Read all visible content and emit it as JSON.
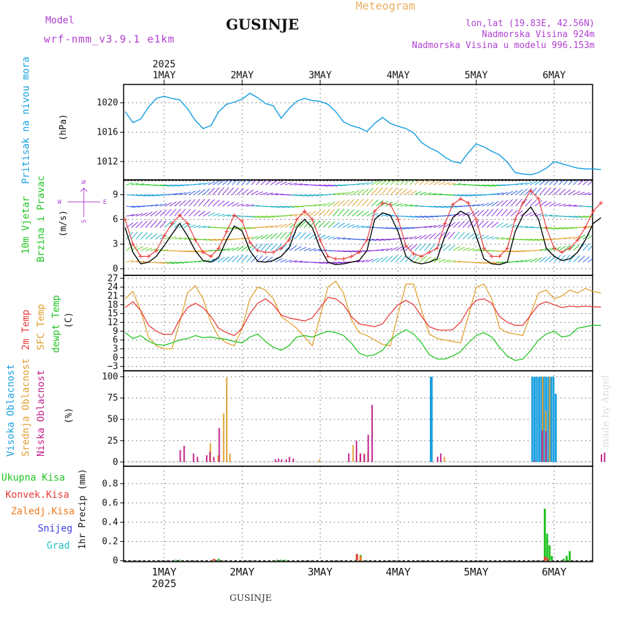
{
  "header": {
    "title": "Meteogram",
    "station": "GUSINJE",
    "model_label": "Model",
    "model_name": "wrf-nmm_v3.9.1 e1km",
    "coords": "lon,lat (19.83E, 42.56N)",
    "elevation": "Nadmorska Visina 924m",
    "model_elevation": "Nadmorska Visina u modelu 996.153m",
    "bottom_station": "GUSINJE",
    "watermark": "made by Angel"
  },
  "time_axis": {
    "year": "2025",
    "days": [
      "1MAY",
      "2MAY",
      "3MAY",
      "4MAY",
      "5MAY",
      "6MAY"
    ]
  },
  "colors": {
    "pressure": "#1aa0e0",
    "temp2m": "#e83a3a",
    "sfc": "#e0a030",
    "dewpt": "#22c422",
    "high_cloud": "#1aa0e0",
    "mid_cloud": "#e0a030",
    "low_cloud": "#c0208a",
    "total_rain": "#22c422",
    "convective": "#e83a3a",
    "freezing": "#f07a20",
    "snow": "#4040e0",
    "hail": "#20c0c0",
    "wind_label": "#22c422",
    "legend_purple": "#b040d0"
  },
  "chart_data": [
    {
      "type": "line",
      "id": "pressure",
      "ylabel": "(hPa)",
      "side_label": "Pritisak na nivou mora",
      "yticks": [
        1012,
        1016,
        1020
      ],
      "ylim": [
        1009.5,
        1022.5
      ],
      "x_unit": "days since 1MAY 00",
      "series": [
        {
          "name": "pressure",
          "x": [
            -0.5,
            -0.4,
            -0.3,
            -0.2,
            -0.1,
            0,
            0.1,
            0.2,
            0.3,
            0.4,
            0.5,
            0.6,
            0.7,
            0.8,
            0.9,
            1,
            1.1,
            1.2,
            1.3,
            1.4,
            1.5,
            1.6,
            1.7,
            1.8,
            1.9,
            2,
            2.1,
            2.2,
            2.3,
            2.4,
            2.5,
            2.6,
            2.7,
            2.8,
            2.9,
            3,
            3.1,
            3.2,
            3.3,
            3.4,
            3.5,
            3.6,
            3.7,
            3.8,
            3.9,
            4,
            4.1,
            4.2,
            4.3,
            4.4,
            4.5,
            4.6,
            4.7,
            4.8,
            4.9,
            5,
            5.1,
            5.2,
            5.3,
            5.4,
            5.5,
            5.6
          ],
          "values": [
            1018.8,
            1017.3,
            1017.8,
            1019.4,
            1020.6,
            1020.9,
            1020.6,
            1020.4,
            1019.2,
            1017.6,
            1016.5,
            1016.9,
            1018.8,
            1019.8,
            1020.1,
            1020.5,
            1021.3,
            1020.7,
            1019.9,
            1019.6,
            1017.9,
            1019.2,
            1020.2,
            1020.6,
            1020.3,
            1020.2,
            1019.8,
            1018.8,
            1017.4,
            1016.9,
            1016.6,
            1016.1,
            1017.2,
            1018.0,
            1017.2,
            1016.8,
            1016.5,
            1015.9,
            1014.6,
            1013.9,
            1013.4,
            1012.6,
            1012.0,
            1011.8,
            1013.2,
            1014.4,
            1014.0,
            1013.4,
            1012.9,
            1011.9,
            1010.5,
            1010.3,
            1010.2,
            1010.5,
            1011.1,
            1012.0,
            1011.7,
            1011.4,
            1011.1,
            1011.0,
            1011.0,
            1010.9
          ]
        }
      ]
    },
    {
      "type": "line",
      "id": "wind",
      "ylabel": "(m/s)",
      "side_label_1": "10m Vjetar",
      "side_label_2": "Brzina i Pravac",
      "compass_n": "N",
      "compass_w": "W",
      "compass_e": "E",
      "compass_s": "S",
      "yticks": [
        0,
        3,
        6,
        9
      ],
      "ylim": [
        -0.8,
        10.8
      ],
      "x_unit": "days since 1MAY 00",
      "series": [
        {
          "name": "speed",
          "x": [
            -0.5,
            -0.4,
            -0.3,
            -0.2,
            -0.1,
            0,
            0.1,
            0.2,
            0.3,
            0.4,
            0.5,
            0.6,
            0.7,
            0.8,
            0.9,
            1,
            1.1,
            1.2,
            1.3,
            1.4,
            1.5,
            1.6,
            1.7,
            1.8,
            1.9,
            2,
            2.1,
            2.2,
            2.3,
            2.4,
            2.5,
            2.6,
            2.7,
            2.8,
            2.9,
            3,
            3.1,
            3.2,
            3.3,
            3.4,
            3.5,
            3.6,
            3.7,
            3.8,
            3.9,
            4,
            4.1,
            4.2,
            4.3,
            4.4,
            4.5,
            4.6,
            4.7,
            4.8,
            4.9,
            5,
            5.1,
            5.2,
            5.3,
            5.4,
            5.5,
            5.6
          ],
          "values": [
            5.0,
            2.0,
            0.6,
            0.8,
            1.5,
            2.8,
            4.2,
            5.5,
            4.0,
            2.2,
            1.0,
            0.8,
            1.4,
            3.5,
            5.2,
            4.6,
            2.2,
            0.9,
            0.8,
            1.0,
            1.5,
            2.5,
            5.0,
            6.0,
            5.0,
            2.5,
            0.8,
            0.5,
            0.6,
            0.8,
            1.0,
            2.2,
            6.0,
            6.8,
            6.5,
            4.5,
            1.5,
            0.8,
            0.6,
            0.8,
            1.2,
            4.0,
            6.2,
            7.0,
            6.5,
            4.0,
            1.2,
            0.6,
            0.5,
            0.8,
            4.5,
            6.5,
            7.5,
            6.0,
            2.5,
            1.5,
            1.0,
            1.2,
            2.0,
            3.5,
            5.5,
            6.2
          ]
        },
        {
          "name": "gust",
          "x": [
            -0.5,
            -0.4,
            -0.3,
            -0.2,
            -0.1,
            0,
            0.1,
            0.2,
            0.3,
            0.4,
            0.5,
            0.6,
            0.7,
            0.8,
            0.9,
            1,
            1.1,
            1.2,
            1.3,
            1.4,
            1.5,
            1.6,
            1.7,
            1.8,
            1.9,
            2,
            2.1,
            2.2,
            2.3,
            2.4,
            2.5,
            2.6,
            2.7,
            2.8,
            2.9,
            3,
            3.1,
            3.2,
            3.3,
            3.4,
            3.5,
            3.6,
            3.7,
            3.8,
            3.9,
            4,
            4.1,
            4.2,
            4.3,
            4.4,
            4.5,
            4.6,
            4.7,
            4.8,
            4.9,
            5,
            5.1,
            5.2,
            5.3,
            5.4,
            5.5,
            5.6
          ],
          "values": [
            6.0,
            3.0,
            1.5,
            1.5,
            2.2,
            4.0,
            5.5,
            6.5,
            5.5,
            3.5,
            2.0,
            1.5,
            2.5,
            4.5,
            6.5,
            5.8,
            3.2,
            2.2,
            2.0,
            2.0,
            2.5,
            3.5,
            6.0,
            7.0,
            6.0,
            3.5,
            1.5,
            1.2,
            1.2,
            1.5,
            2.0,
            3.5,
            7.0,
            8.0,
            7.8,
            6.0,
            2.8,
            1.8,
            1.5,
            2.0,
            2.5,
            5.5,
            7.8,
            8.5,
            8.0,
            6.0,
            2.5,
            1.5,
            1.5,
            2.5,
            6.0,
            8.0,
            9.5,
            8.5,
            5.0,
            2.5,
            2.0,
            2.5,
            3.5,
            5.0,
            7.0,
            8.0
          ]
        }
      ]
    },
    {
      "type": "line",
      "id": "temperature",
      "ylabel": "(C)",
      "label_temp": "2m Temp",
      "label_sfc": "SFC Temp",
      "label_dewpt": "dewpt Temp",
      "yticks": [
        -3,
        0,
        3,
        6,
        9,
        12,
        15,
        18,
        21,
        24,
        27
      ],
      "ylim": [
        -4.5,
        28
      ],
      "x_unit": "days since 1MAY 00",
      "series": [
        {
          "name": "2m Temp",
          "x": [
            -0.5,
            -0.4,
            -0.3,
            -0.2,
            -0.1,
            0,
            0.1,
            0.2,
            0.3,
            0.4,
            0.5,
            0.6,
            0.7,
            0.8,
            0.9,
            1,
            1.1,
            1.2,
            1.3,
            1.4,
            1.5,
            1.6,
            1.7,
            1.8,
            1.9,
            2,
            2.1,
            2.2,
            2.3,
            2.4,
            2.5,
            2.6,
            2.7,
            2.8,
            2.9,
            3,
            3.1,
            3.2,
            3.3,
            3.4,
            3.5,
            3.6,
            3.7,
            3.8,
            3.9,
            4,
            4.1,
            4.2,
            4.3,
            4.4,
            4.5,
            4.6,
            4.7,
            4.8,
            4.9,
            5,
            5.1,
            5.2,
            5.3,
            5.4,
            5.5,
            5.6
          ],
          "values": [
            17.0,
            19.0,
            16.0,
            11.0,
            9.0,
            7.8,
            8.0,
            13.0,
            17.0,
            18.5,
            17.0,
            14.0,
            10.0,
            8.5,
            7.5,
            10.0,
            15.0,
            18.5,
            20.0,
            18.0,
            14.5,
            13.5,
            13.0,
            12.5,
            13.5,
            17.0,
            20.5,
            20.0,
            18.0,
            14.0,
            11.5,
            11.0,
            10.5,
            11.5,
            15.0,
            18.0,
            19.5,
            18.0,
            14.0,
            10.5,
            9.5,
            9.3,
            9.5,
            12.0,
            16.5,
            19.5,
            20.0,
            18.5,
            14.0,
            12.0,
            11.0,
            11.0,
            14.5,
            18.0,
            19.0,
            18.0,
            17.0,
            17.5,
            17.3,
            17.5,
            17.3,
            17.2
          ]
        },
        {
          "name": "SFC Temp",
          "x": [
            -0.5,
            -0.4,
            -0.3,
            -0.2,
            -0.1,
            0,
            0.1,
            0.2,
            0.3,
            0.4,
            0.5,
            0.6,
            0.7,
            0.8,
            0.9,
            1,
            1.1,
            1.2,
            1.3,
            1.4,
            1.5,
            1.6,
            1.7,
            1.8,
            1.9,
            2,
            2.1,
            2.2,
            2.3,
            2.4,
            2.5,
            2.6,
            2.7,
            2.8,
            2.9,
            3,
            3.1,
            3.2,
            3.3,
            3.4,
            3.5,
            3.6,
            3.7,
            3.8,
            3.9,
            4,
            4.1,
            4.2,
            4.3,
            4.4,
            4.5,
            4.6,
            4.7,
            4.8,
            4.9,
            5,
            5.1,
            5.2,
            5.3,
            5.4,
            5.5,
            5.6
          ],
          "values": [
            20.0,
            22.5,
            16.0,
            7.0,
            4.0,
            3.0,
            3.0,
            12.0,
            22.0,
            24.5,
            20.0,
            12.0,
            7.0,
            5.0,
            4.0,
            10.0,
            20.0,
            24.0,
            23.0,
            20.0,
            14.0,
            12.0,
            10.0,
            7.0,
            4.0,
            14.0,
            24.0,
            26.0,
            22.0,
            13.0,
            8.5,
            7.5,
            6.0,
            4.5,
            4.0,
            15.0,
            25.0,
            25.0,
            16.0,
            8.0,
            6.5,
            6.0,
            5.5,
            5.0,
            14.0,
            24.0,
            25.0,
            20.0,
            10.0,
            8.5,
            8.0,
            7.5,
            15.0,
            22.0,
            23.0,
            20.0,
            21.0,
            23.0,
            22.0,
            23.5,
            22.5,
            22.0
          ]
        },
        {
          "name": "dewpt Temp",
          "x": [
            -0.5,
            -0.4,
            -0.3,
            -0.2,
            -0.1,
            0,
            0.1,
            0.2,
            0.3,
            0.4,
            0.5,
            0.6,
            0.7,
            0.8,
            0.9,
            1,
            1.1,
            1.2,
            1.3,
            1.4,
            1.5,
            1.6,
            1.7,
            1.8,
            1.9,
            2,
            2.1,
            2.2,
            2.3,
            2.4,
            2.5,
            2.6,
            2.7,
            2.8,
            2.9,
            3,
            3.1,
            3.2,
            3.3,
            3.4,
            3.5,
            3.6,
            3.7,
            3.8,
            3.9,
            4,
            4.1,
            4.2,
            4.3,
            4.4,
            4.5,
            4.6,
            4.7,
            4.8,
            4.9,
            5,
            5.1,
            5.2,
            5.3,
            5.4,
            5.5,
            5.6
          ],
          "values": [
            8.5,
            6.5,
            7.5,
            5.5,
            4.5,
            4.2,
            5.0,
            6.0,
            6.5,
            7.5,
            6.8,
            7.0,
            6.5,
            6.2,
            5.5,
            5.0,
            7.0,
            8.0,
            5.5,
            3.5,
            2.5,
            4.0,
            7.0,
            7.5,
            7.0,
            8.0,
            9.0,
            8.5,
            7.5,
            5.0,
            1.5,
            0.5,
            1.0,
            2.5,
            6.0,
            8.0,
            9.5,
            8.0,
            5.0,
            1.0,
            -0.5,
            -0.5,
            0.5,
            2.0,
            5.0,
            7.5,
            8.5,
            7.0,
            3.5,
            0.5,
            -1.0,
            -0.5,
            2.5,
            6.0,
            8.0,
            9.0,
            7.0,
            7.5,
            10.0,
            10.5,
            11.0,
            11.0
          ]
        }
      ]
    },
    {
      "type": "bar",
      "id": "clouds",
      "ylabel": "(%)",
      "label_high": "Visoka Oblacnost",
      "label_mid": "Srednja Oblacnost",
      "label_low": "Niska Oblacnost",
      "yticks": [
        0,
        25,
        50,
        75,
        100
      ],
      "ylim": [
        -5,
        107
      ],
      "x_unit": "days since 1MAY 00",
      "series": [
        {
          "name": "Visoka Oblacnost",
          "x": [
            3.42,
            3.43,
            4.72,
            4.75,
            4.78,
            4.81,
            4.84,
            4.87,
            4.9,
            4.93,
            4.96,
            4.99,
            5.02
          ],
          "values": [
            100,
            100,
            100,
            100,
            100,
            100,
            100,
            100,
            100,
            100,
            100,
            100,
            80
          ]
        },
        {
          "name": "Srednja Oblacnost",
          "x": [
            0.58,
            0.68,
            0.75,
            0.79,
            0.83,
            1.98,
            2.41,
            2.5,
            2.55,
            2.6,
            3.58,
            4.84,
            4.88,
            4.93
          ],
          "values": [
            22,
            8,
            57,
            99,
            10,
            3,
            20,
            10,
            10,
            12,
            6,
            100,
            60,
            100
          ]
        },
        {
          "name": "Niska Oblacnost",
          "x": [
            0.22,
            0.27,
            0.39,
            0.44,
            0.56,
            0.6,
            0.65,
            0.72,
            1.44,
            1.48,
            1.52,
            1.58,
            1.62,
            1.67,
            2.38,
            2.48,
            2.53,
            2.58,
            2.63,
            2.68,
            3.52,
            3.56,
            4.76,
            4.86,
            4.91,
            5.62,
            5.66
          ],
          "values": [
            14,
            19,
            10,
            6,
            8,
            12,
            6,
            40,
            3,
            4,
            3,
            3,
            6,
            4,
            10,
            25,
            10,
            9,
            32,
            67,
            6,
            10,
            2,
            37,
            36,
            9,
            11
          ]
        }
      ]
    },
    {
      "type": "bar",
      "id": "precip",
      "ylabel": "1hr Precip (mm)",
      "label_total": "Ukupna Kisa",
      "label_conv": "Konvek.Kisa",
      "label_freezing": "Zaledj.Kisa",
      "label_snow": "Snijeg",
      "label_hail": "Grad",
      "yticks": [
        0,
        0.2,
        0.4,
        0.6,
        0.8
      ],
      "ylim": [
        -0.01,
        0.98
      ],
      "x_unit": "days since 1MAY 00",
      "series": [
        {
          "name": "Ukupna Kisa",
          "x": [
            0.15,
            0.2,
            0.62,
            0.7,
            1.45,
            1.5,
            1.55,
            2.47,
            2.52,
            4.88,
            4.91,
            4.94,
            4.97,
            5.12,
            5.16,
            5.2
          ],
          "values": [
            0.01,
            0.01,
            0.01,
            0.02,
            0.01,
            0.01,
            0.01,
            0.07,
            0.06,
            0.54,
            0.28,
            0.16,
            0.05,
            0.02,
            0.05,
            0.1
          ]
        },
        {
          "name": "Konvek.Kisa",
          "x": [
            0.66,
            2.49,
            4.9,
            4.93
          ],
          "values": [
            0.02,
            0.07,
            0.04,
            0.03
          ]
        },
        {
          "name": "Zaledj.Kisa",
          "x": [
            0.6,
            2.5
          ],
          "values": [
            0.01,
            0.05
          ]
        }
      ]
    }
  ]
}
